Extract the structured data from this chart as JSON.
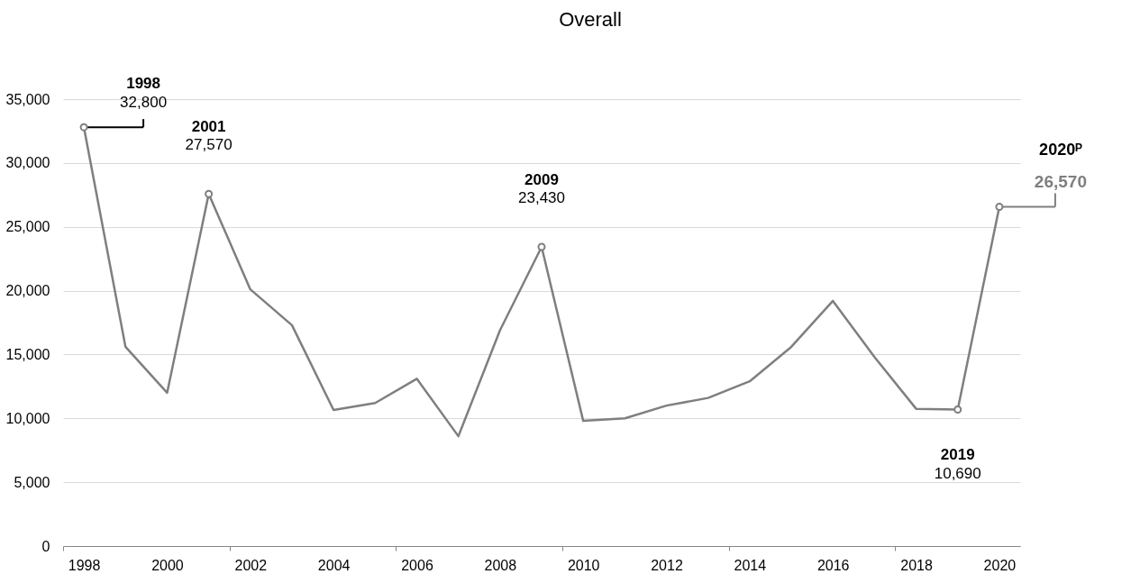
{
  "chart_data": {
    "type": "line",
    "title": "Overall",
    "categories": [
      "1998",
      null,
      "2000",
      null,
      "2002",
      null,
      "2004",
      null,
      "2006",
      null,
      "2008",
      null,
      "2010",
      null,
      "2012",
      null,
      "2014",
      null,
      "2016",
      null,
      "2018",
      null,
      "2020"
    ],
    "series": [
      {
        "color": "#7f7f7f",
        "values": [
          32800,
          15600,
          12000,
          27570,
          20100,
          17300,
          10650,
          11200,
          13100,
          8600,
          16900,
          23430,
          9800,
          10000,
          11000,
          11600,
          12900,
          15600,
          19200,
          14800,
          10750,
          10690,
          26570
        ],
        "value_labels": [
          "1998\n32,800",
          null,
          null,
          "2001\n27,570",
          null,
          null,
          null,
          null,
          null,
          null,
          null,
          "2009\n23,430",
          null,
          null,
          null,
          null,
          null,
          null,
          null,
          null,
          null,
          "2019\n10,690",
          "2020ᴾ\n26,570"
        ]
      }
    ],
    "ylim": [
      0,
      35000
    ],
    "yticks": [
      0,
      {
        "value": 5000,
        "label": "5,000"
      },
      {
        "value": 10000,
        "label": "10,000"
      },
      {
        "value": 15000,
        "label": "15,000"
      },
      {
        "value": 20000,
        "label": "20,000"
      },
      {
        "value": 25000,
        "label": "25,000"
      },
      {
        "value": 30000,
        "label": "30,000"
      },
      {
        "value": 35000,
        "label": "35,000"
      }
    ],
    "grid": "y",
    "line_style": "solid"
  }
}
